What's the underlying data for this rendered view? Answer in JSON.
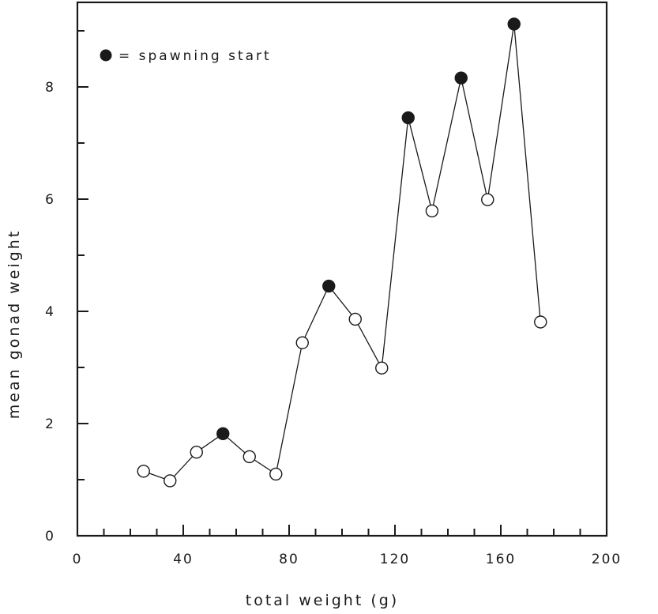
{
  "chart_data": {
    "type": "scatter",
    "title": "",
    "xlabel": "total weight (g)",
    "ylabel": "mean gonad weight",
    "xlim": [
      0,
      200
    ],
    "ylim": [
      0,
      9.5
    ],
    "x_ticks_major": [
      0,
      40,
      80,
      120,
      160,
      200
    ],
    "x_tick_labels": [
      "0",
      "40",
      "80",
      "120",
      "160",
      "200"
    ],
    "x_ticks_minor_step": 10,
    "y_ticks_major": [
      0,
      2,
      4,
      6,
      8
    ],
    "y_tick_labels": [
      "0",
      "2",
      "4",
      "6",
      "8"
    ],
    "y_ticks_minor_step": 1,
    "grid": false,
    "legend": {
      "placement": "top-left",
      "entries": [
        {
          "marker": "filled-circle",
          "label": "= spawning start"
        }
      ]
    },
    "series": [
      {
        "connected": true,
        "points": [
          {
            "x": 25,
            "y": 1.15,
            "spawning_start": false
          },
          {
            "x": 35,
            "y": 0.98,
            "spawning_start": false
          },
          {
            "x": 45,
            "y": 1.49,
            "spawning_start": false
          },
          {
            "x": 55,
            "y": 1.82,
            "spawning_start": true
          },
          {
            "x": 65,
            "y": 1.41,
            "spawning_start": false
          },
          {
            "x": 75,
            "y": 1.1,
            "spawning_start": false
          },
          {
            "x": 85,
            "y": 3.44,
            "spawning_start": false
          },
          {
            "x": 95,
            "y": 4.45,
            "spawning_start": true
          },
          {
            "x": 105,
            "y": 3.86,
            "spawning_start": false
          },
          {
            "x": 115,
            "y": 2.99,
            "spawning_start": false
          },
          {
            "x": 125,
            "y": 7.45,
            "spawning_start": true
          },
          {
            "x": 134,
            "y": 5.79,
            "spawning_start": false
          },
          {
            "x": 145,
            "y": 8.16,
            "spawning_start": true
          },
          {
            "x": 155,
            "y": 5.99,
            "spawning_start": false
          },
          {
            "x": 165,
            "y": 9.12,
            "spawning_start": true
          },
          {
            "x": 175,
            "y": 3.81,
            "spawning_start": false
          }
        ]
      }
    ]
  }
}
